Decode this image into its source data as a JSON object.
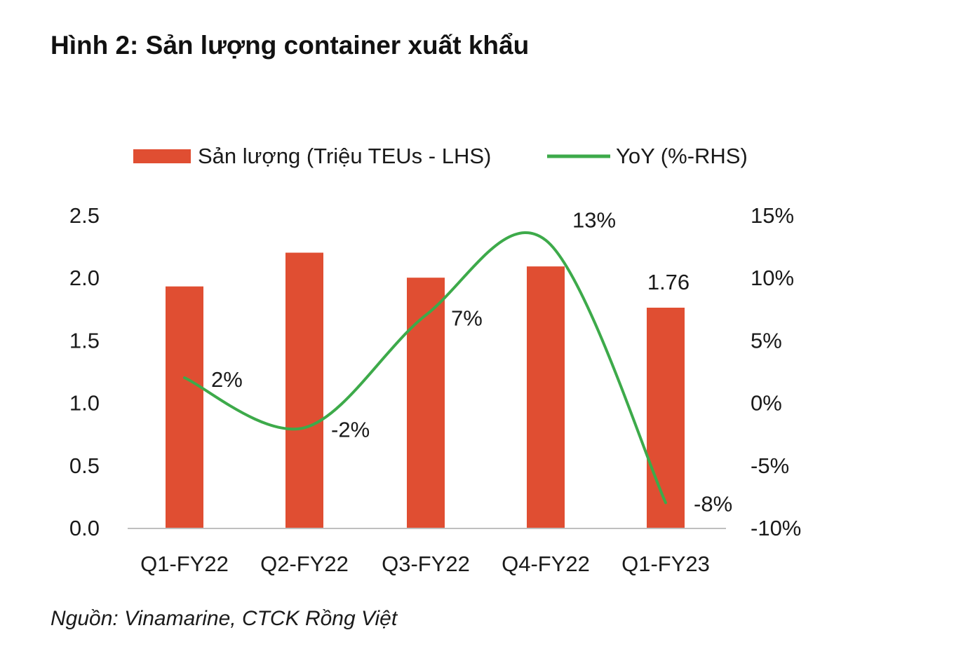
{
  "figure": {
    "title": "Hình 2: Sản lượng container xuất khẩu",
    "source": "Nguồn: Vinamarine, CTCK Rồng Việt"
  },
  "colors": {
    "bar": "#E04E32",
    "line": "#3DAA4A",
    "axis": "#bfbfbf"
  },
  "chart_data": {
    "type": "bar",
    "categories": [
      "Q1-FY22",
      "Q2-FY22",
      "Q3-FY22",
      "Q4-FY22",
      "Q1-FY23"
    ],
    "series": [
      {
        "name": "Sản lượng (Triệu TEUs - LHS)",
        "type": "bar",
        "axis": "left",
        "values": [
          1.93,
          2.2,
          2.0,
          2.09,
          1.76
        ],
        "data_labels": [
          "",
          "",
          "",
          "",
          "1.76"
        ]
      },
      {
        "name": "YoY (%-RHS)",
        "type": "line",
        "smooth": true,
        "axis": "right",
        "values": [
          2,
          -2,
          7,
          13,
          -8
        ],
        "data_labels": [
          "2%",
          "-2%",
          "7%",
          "13%",
          "-8%"
        ]
      }
    ],
    "left_axis": {
      "ylim": [
        0,
        2.5
      ],
      "ticks": [
        0,
        0.5,
        1,
        1.5,
        2,
        2.5
      ],
      "tick_labels": [
        "0.0",
        "0.5",
        "1.0",
        "1.5",
        "2.0",
        "2.5"
      ]
    },
    "right_axis": {
      "ylim": [
        -10,
        15
      ],
      "ticks": [
        -10,
        -5,
        0,
        5,
        10,
        15
      ],
      "tick_labels": [
        "-10%",
        "-5%",
        "0%",
        "5%",
        "10%",
        "15%"
      ]
    },
    "grid": false,
    "legend_position": "top"
  }
}
